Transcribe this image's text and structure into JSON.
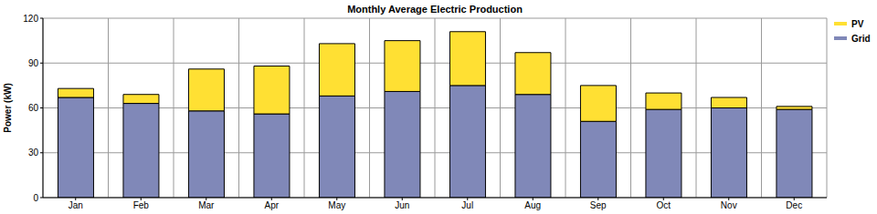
{
  "chart_data": {
    "type": "bar",
    "title": "Monthly Average Electric Production",
    "y_label": "Power (kW)",
    "categories": [
      "Jan",
      "Feb",
      "Mar",
      "Apr",
      "May",
      "Jun",
      "Jul",
      "Aug",
      "Sep",
      "Oct",
      "Nov",
      "Dec"
    ],
    "series": [
      {
        "name": "PV",
        "color": "#ffe033",
        "values": [
          6,
          6,
          28,
          32,
          35,
          34,
          36,
          28,
          24,
          11,
          7,
          2
        ]
      },
      {
        "name": "Grid",
        "color": "#8088b8",
        "values": [
          67,
          63,
          58,
          56,
          68,
          71,
          75,
          69,
          51,
          59,
          60,
          59
        ]
      }
    ],
    "ylim": [
      0,
      120
    ],
    "yticks": [
      0,
      30,
      60,
      90,
      120
    ],
    "grid": true,
    "stacked": true,
    "legend": "right"
  }
}
